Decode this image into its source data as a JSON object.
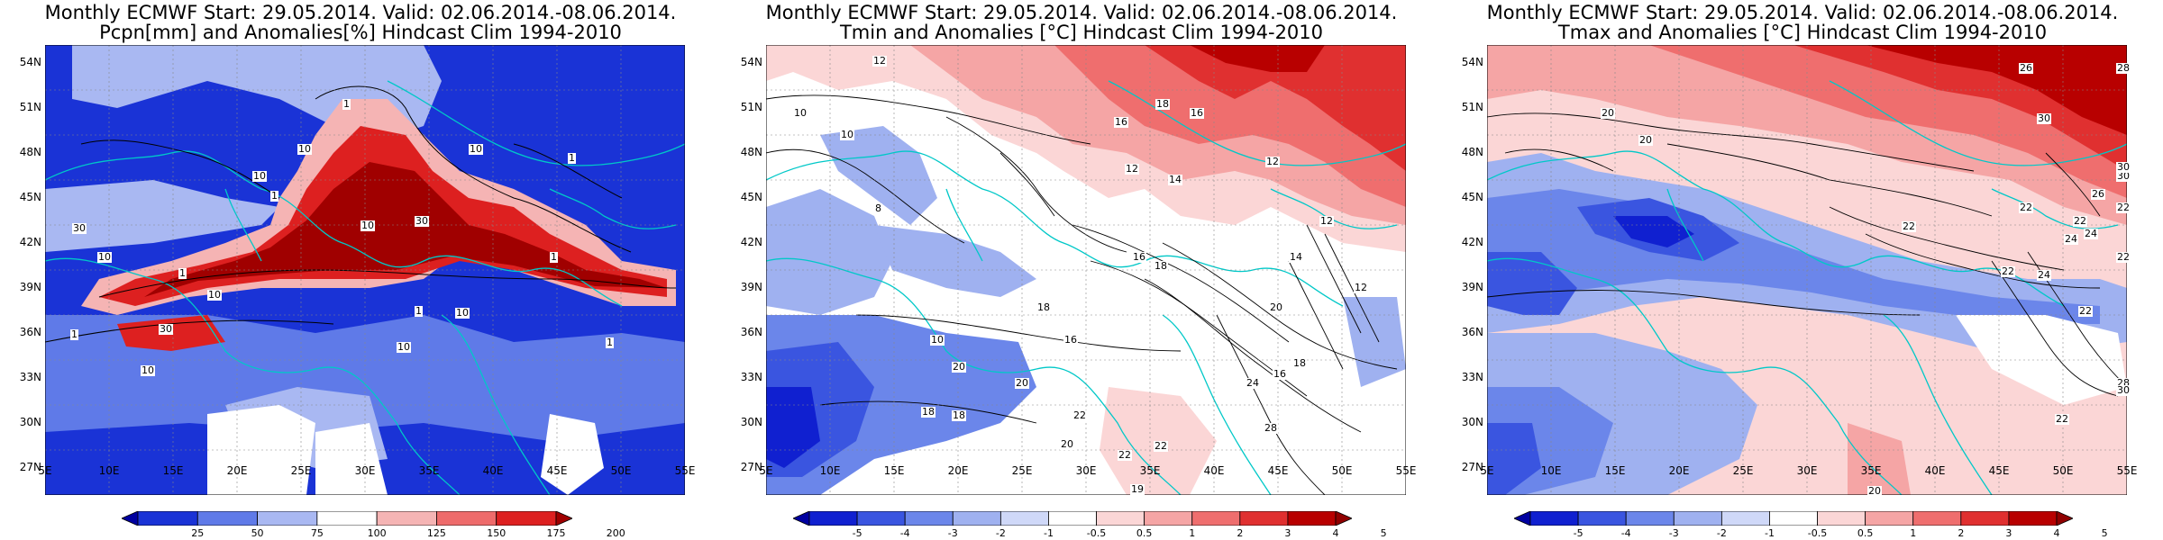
{
  "panels": [
    {
      "id": "precip",
      "title1": "Monthly ECMWF Start: 29.05.2014. Valid: 02.06.2014.-08.06.2014.",
      "title2": "Pcpn[mm] and Anomalies[%] Hindcast Clim 1994-2010",
      "lat_labels": [
        "54N",
        "51N",
        "48N",
        "45N",
        "42N",
        "39N",
        "36N",
        "33N",
        "30N",
        "27N"
      ],
      "lon_labels": [
        "5E",
        "10E",
        "15E",
        "20E",
        "25E",
        "30E",
        "35E",
        "40E",
        "45E",
        "50E",
        "55E"
      ],
      "colorbar": {
        "labels": [
          "25",
          "50",
          "75",
          "100",
          "125",
          "150",
          "175",
          "200"
        ],
        "colors": [
          "#0000a0",
          "#1a33d6",
          "#5f7ae8",
          "#a9b8f2",
          "#ffffff",
          "#f5b4b4",
          "#ee6b6b",
          "#dd2020",
          "#a00000"
        ]
      },
      "contour_labels": [
        "1",
        "1",
        "10",
        "30",
        "10",
        "1",
        "10",
        "30",
        "10",
        "1",
        "30",
        "10",
        "10",
        "1",
        "10",
        "1",
        "1",
        "10",
        "10",
        "1"
      ]
    },
    {
      "id": "tmin",
      "title1": "Monthly ECMWF Start: 29.05.2014. Valid: 02.06.2014.-08.06.2014.",
      "title2": "Tmin and Anomalies [°C] Hindcast Clim 1994-2010",
      "lat_labels": [
        "54N",
        "51N",
        "48N",
        "45N",
        "42N",
        "39N",
        "36N",
        "33N",
        "30N",
        "27N"
      ],
      "lon_labels": [
        "5E",
        "10E",
        "15E",
        "20E",
        "25E",
        "30E",
        "35E",
        "40E",
        "45E",
        "50E",
        "55E"
      ],
      "colorbar": {
        "labels": [
          "-5",
          "-4",
          "-3",
          "-2",
          "-1",
          "-0.5",
          "0.5",
          "1",
          "2",
          "3",
          "4",
          "5"
        ],
        "colors": [
          "#0000a0",
          "#1020d0",
          "#3a55e0",
          "#6b86ea",
          "#9fb1f0",
          "#cfd8f8",
          "#ffffff",
          "#fbd6d6",
          "#f5a5a5",
          "#ef6e6e",
          "#e03030",
          "#b80000",
          "#900000"
        ]
      },
      "contour_labels": [
        "12",
        "10",
        "10",
        "8",
        "16",
        "16",
        "18",
        "12",
        "14",
        "12",
        "12",
        "12",
        "16",
        "18",
        "18",
        "14",
        "10",
        "16",
        "20",
        "22",
        "20",
        "18",
        "18",
        "20",
        "22",
        "24",
        "16",
        "18",
        "28",
        "20",
        "19",
        "22"
      ]
    },
    {
      "id": "tmax",
      "title1": "Monthly ECMWF Start: 29.05.2014. Valid: 02.06.2014.-08.06.2014.",
      "title2": "Tmax and Anomalies [°C] Hindcast Clim 1994-2010",
      "lat_labels": [
        "54N",
        "51N",
        "48N",
        "45N",
        "42N",
        "39N",
        "36N",
        "33N",
        "30N",
        "27N"
      ],
      "lon_labels": [
        "5E",
        "10E",
        "15E",
        "20E",
        "25E",
        "30E",
        "35E",
        "40E",
        "45E",
        "50E",
        "55E"
      ],
      "colorbar": {
        "labels": [
          "-5",
          "-4",
          "-3",
          "-2",
          "-1",
          "-0.5",
          "0.5",
          "1",
          "2",
          "3",
          "4",
          "5"
        ],
        "colors": [
          "#0000a0",
          "#1020d0",
          "#3a55e0",
          "#6b86ea",
          "#9fb1f0",
          "#cfd8f8",
          "#ffffff",
          "#fbd6d6",
          "#f5a5a5",
          "#ef6e6e",
          "#e03030",
          "#b80000",
          "#900000"
        ]
      },
      "contour_labels": [
        "26",
        "28",
        "30",
        "20",
        "20",
        "26",
        "24",
        "22",
        "22",
        "22",
        "24",
        "30",
        "22",
        "30",
        "22",
        "24",
        "22",
        "22",
        "28",
        "30",
        "22",
        "20"
      ]
    }
  ]
}
